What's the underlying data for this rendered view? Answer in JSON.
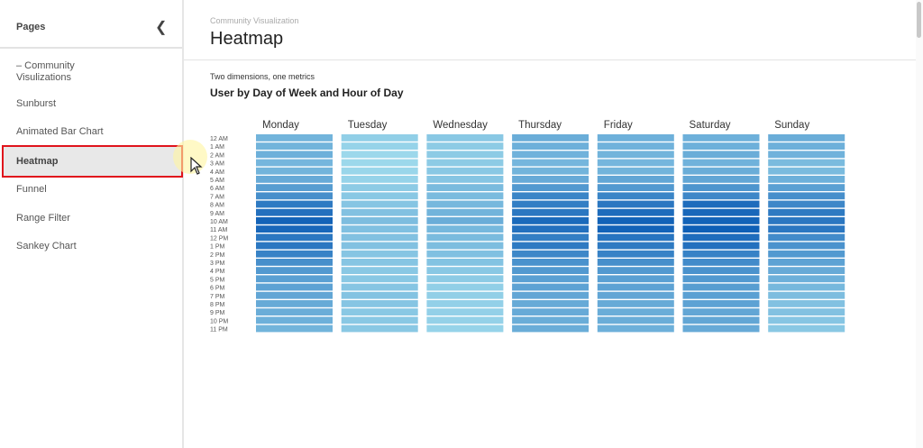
{
  "sidebar": {
    "title": "Pages",
    "collapse_icon": "chevron-left-icon",
    "items": [
      {
        "label": "– Community\nVisulizations"
      },
      {
        "label": "Sunburst"
      },
      {
        "label": "Animated Bar Chart"
      },
      {
        "label": "Heatmap",
        "active": true
      },
      {
        "label": "Funnel"
      },
      {
        "label": "Range Filter"
      },
      {
        "label": "Sankey Chart"
      }
    ]
  },
  "header": {
    "breadcrumb": "Community Visualization",
    "title": "Heatmap"
  },
  "chart_data": {
    "type": "heatmap",
    "subtitle": "Two dimensions, one metrics",
    "title": "User by Day of Week and Hour of Day",
    "color_low": "#a9e3f0",
    "color_high": "#0b5cb5",
    "columns": [
      "Monday",
      "Tuesday",
      "Wednesday",
      "Thursday",
      "Friday",
      "Saturday",
      "Sunday"
    ],
    "rows": [
      "12 AM",
      "1 AM",
      "2 AM",
      "3 AM",
      "4 AM",
      "5 AM",
      "6 AM",
      "7 AM",
      "8 AM",
      "9 AM",
      "10 AM",
      "11 AM",
      "12 PM",
      "1 PM",
      "2 PM",
      "3 PM",
      "4 PM",
      "5 PM",
      "6 PM",
      "7 PM",
      "8 PM",
      "9 PM",
      "10 PM",
      "11 PM"
    ],
    "intensity": [
      [
        0.35,
        0.35,
        0.38,
        0.33,
        0.35,
        0.42,
        0.52,
        0.62,
        0.78,
        0.85,
        0.95,
        0.92,
        0.8,
        0.8,
        0.72,
        0.62,
        0.55,
        0.5,
        0.48,
        0.45,
        0.42,
        0.4,
        0.38,
        0.35
      ],
      [
        0.15,
        0.12,
        0.08,
        0.08,
        0.1,
        0.12,
        0.18,
        0.2,
        0.22,
        0.25,
        0.28,
        0.26,
        0.25,
        0.25,
        0.22,
        0.22,
        0.2,
        0.2,
        0.22,
        0.24,
        0.22,
        0.2,
        0.2,
        0.2
      ],
      [
        0.2,
        0.18,
        0.18,
        0.18,
        0.2,
        0.22,
        0.3,
        0.3,
        0.32,
        0.35,
        0.4,
        0.32,
        0.3,
        0.28,
        0.26,
        0.24,
        0.2,
        0.18,
        0.15,
        0.15,
        0.14,
        0.14,
        0.13,
        0.12
      ],
      [
        0.4,
        0.38,
        0.36,
        0.33,
        0.35,
        0.42,
        0.55,
        0.7,
        0.75,
        0.8,
        0.9,
        0.85,
        0.75,
        0.78,
        0.68,
        0.6,
        0.55,
        0.5,
        0.48,
        0.45,
        0.42,
        0.42,
        0.4,
        0.4
      ],
      [
        0.38,
        0.36,
        0.35,
        0.33,
        0.35,
        0.45,
        0.55,
        0.7,
        0.8,
        0.88,
        0.95,
        0.95,
        0.82,
        0.78,
        0.72,
        0.62,
        0.55,
        0.5,
        0.48,
        0.45,
        0.42,
        0.4,
        0.4,
        0.38
      ],
      [
        0.38,
        0.38,
        0.4,
        0.36,
        0.4,
        0.45,
        0.58,
        0.68,
        0.88,
        0.92,
        0.95,
        0.98,
        0.88,
        0.85,
        0.72,
        0.65,
        0.6,
        0.55,
        0.52,
        0.5,
        0.48,
        0.45,
        0.45,
        0.42
      ],
      [
        0.4,
        0.38,
        0.36,
        0.3,
        0.3,
        0.38,
        0.5,
        0.62,
        0.68,
        0.78,
        0.8,
        0.8,
        0.65,
        0.6,
        0.55,
        0.48,
        0.42,
        0.38,
        0.32,
        0.28,
        0.25,
        0.25,
        0.22,
        0.2
      ]
    ]
  }
}
